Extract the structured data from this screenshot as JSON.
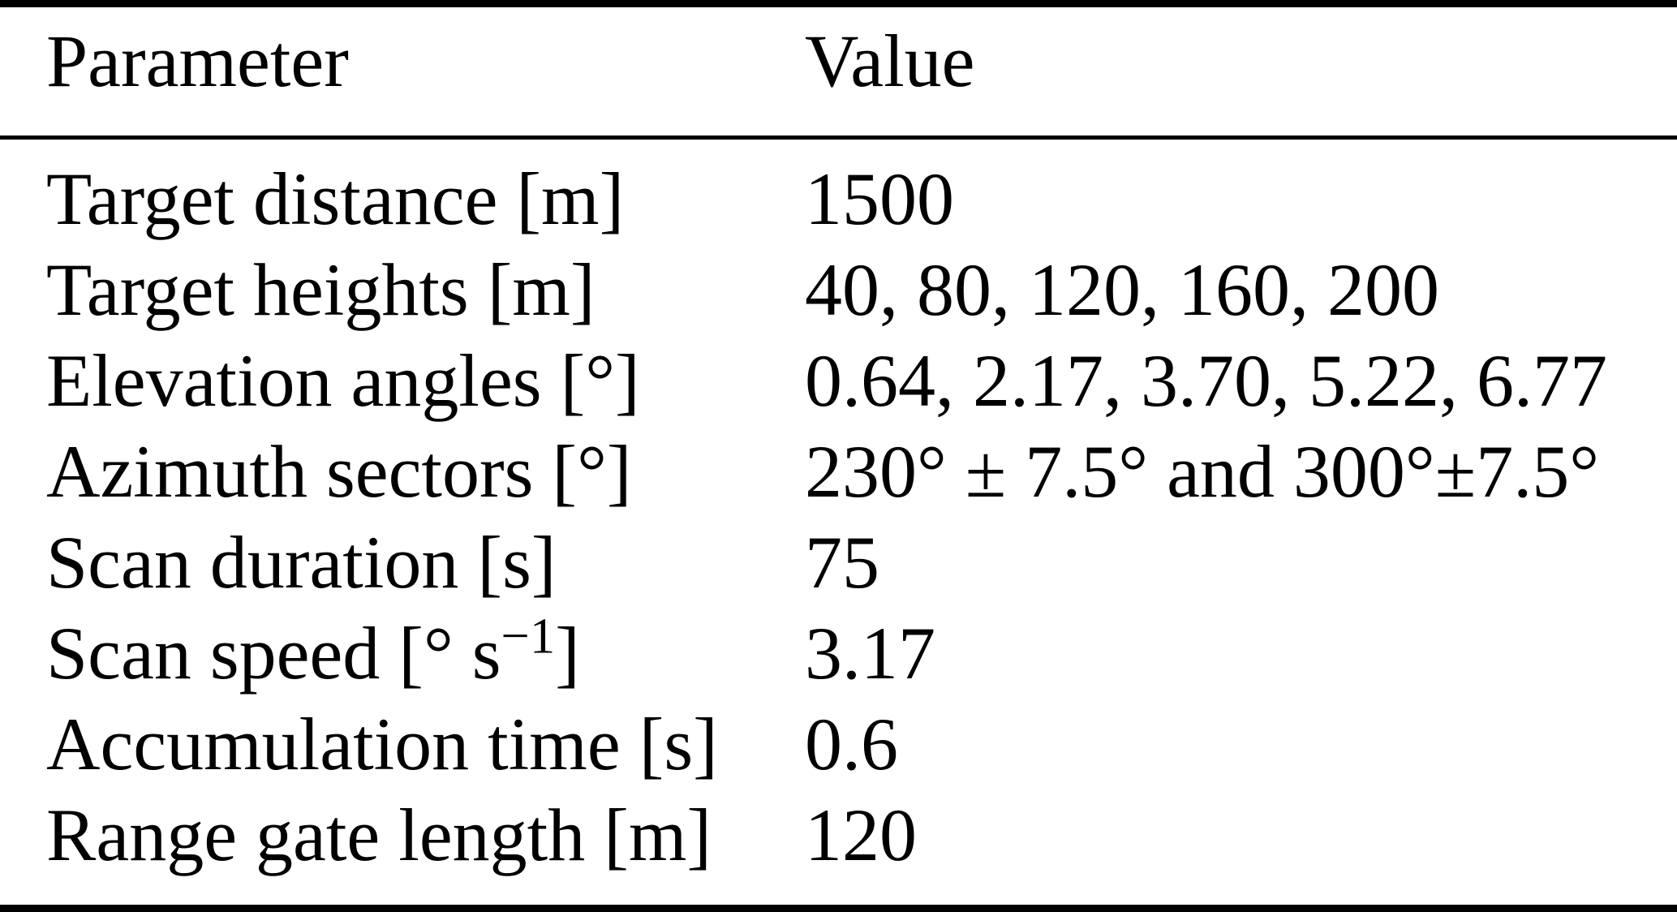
{
  "table": {
    "header": {
      "parameter": "Parameter",
      "value": "Value"
    },
    "rows": [
      {
        "parameter": "Target distance [m]",
        "value": "1500"
      },
      {
        "parameter": "Target heights [m]",
        "value": "40, 80, 120, 160, 200"
      },
      {
        "parameter": "Elevation angles [°]",
        "value": "0.64, 2.17, 3.70, 5.22, 6.77"
      },
      {
        "parameter": "Azimuth sectors [°]",
        "value": "230° ± 7.5° and 300°±7.5°"
      },
      {
        "parameter": "Scan duration [s]",
        "value": "75"
      },
      {
        "parameter": "Scan speed [° s^{−1}]",
        "value": "3.17"
      },
      {
        "parameter": "Accumulation time [s]",
        "value": "0.6"
      },
      {
        "parameter": "Range gate length [m]",
        "value": "120"
      }
    ],
    "style": {
      "rule_color": "#000000",
      "text_color": "#000000",
      "background": "#ffffff"
    }
  }
}
